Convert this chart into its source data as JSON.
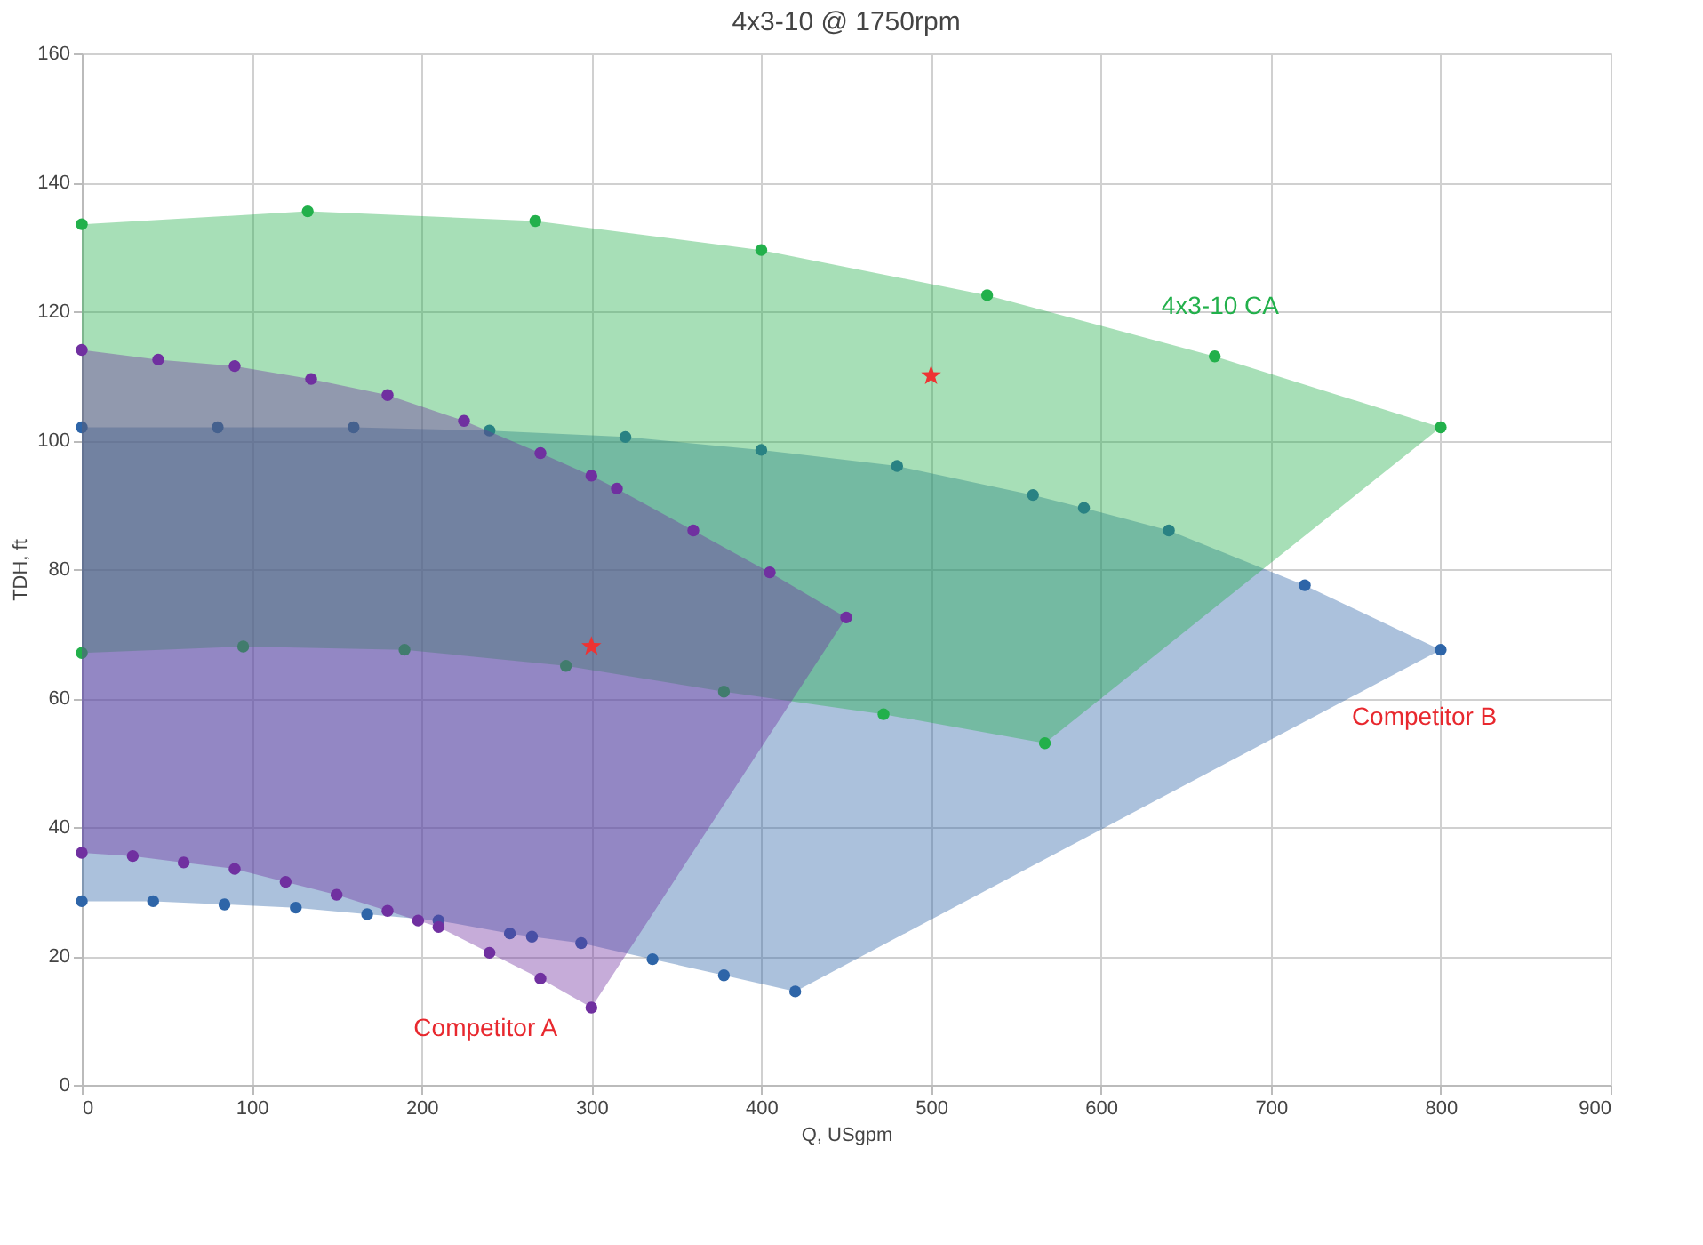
{
  "chart_data": {
    "type": "area",
    "title": "4x3-10 @ 1750rpm",
    "xlabel": "Q, USgpm",
    "ylabel": "TDH, ft",
    "xlim": [
      0,
      900
    ],
    "xticks": [
      0,
      100,
      200,
      300,
      400,
      500,
      600,
      700,
      800,
      900
    ],
    "ylim": [
      0,
      160
    ],
    "yticks": [
      0,
      20,
      40,
      60,
      80,
      100,
      120,
      140,
      160
    ],
    "grid": true,
    "legend": false,
    "marker": "circle",
    "series": [
      {
        "name": "Competitor B",
        "color": "#2e65a8",
        "x": [
          0,
          80,
          160,
          240,
          320,
          400,
          480,
          560,
          590,
          640,
          720,
          800,
          420,
          378,
          336,
          294,
          265,
          252,
          210,
          168,
          126,
          84,
          42,
          0
        ],
        "values": [
          102,
          102,
          102,
          101.5,
          100.5,
          98.5,
          96,
          91.5,
          89.5,
          86,
          77.5,
          67.5,
          14.5,
          17,
          19.5,
          22,
          23,
          23.5,
          25.5,
          26.5,
          27.5,
          28,
          28.5,
          28.5
        ]
      },
      {
        "name": "4x3-10 CA",
        "color": "#22b04b",
        "x": [
          0,
          133,
          267,
          400,
          533,
          667,
          800,
          567,
          472,
          378,
          285,
          190,
          95,
          0
        ],
        "values": [
          133.5,
          135.5,
          134,
          129.5,
          122.5,
          113,
          102,
          53,
          57.5,
          61,
          65,
          67.5,
          68,
          67
        ]
      },
      {
        "name": "Competitor A",
        "color": "#7030a0",
        "x": [
          0,
          45,
          90,
          135,
          180,
          225,
          270,
          300,
          315,
          360,
          405,
          450,
          300,
          270,
          240,
          210,
          198,
          180,
          150,
          120,
          90,
          60,
          30,
          0
        ],
        "values": [
          114,
          112.5,
          111.5,
          109.5,
          107,
          103,
          98,
          94.5,
          92.5,
          86,
          79.5,
          72.5,
          12,
          16.5,
          20.5,
          24.5,
          25.5,
          27,
          29.5,
          31.5,
          33.5,
          34.5,
          35.5,
          36
        ]
      },
      {
        "type": "scatter",
        "marker": "star",
        "color": "#ee3333",
        "x": [
          500,
          300
        ],
        "values": [
          110,
          68
        ]
      }
    ]
  }
}
